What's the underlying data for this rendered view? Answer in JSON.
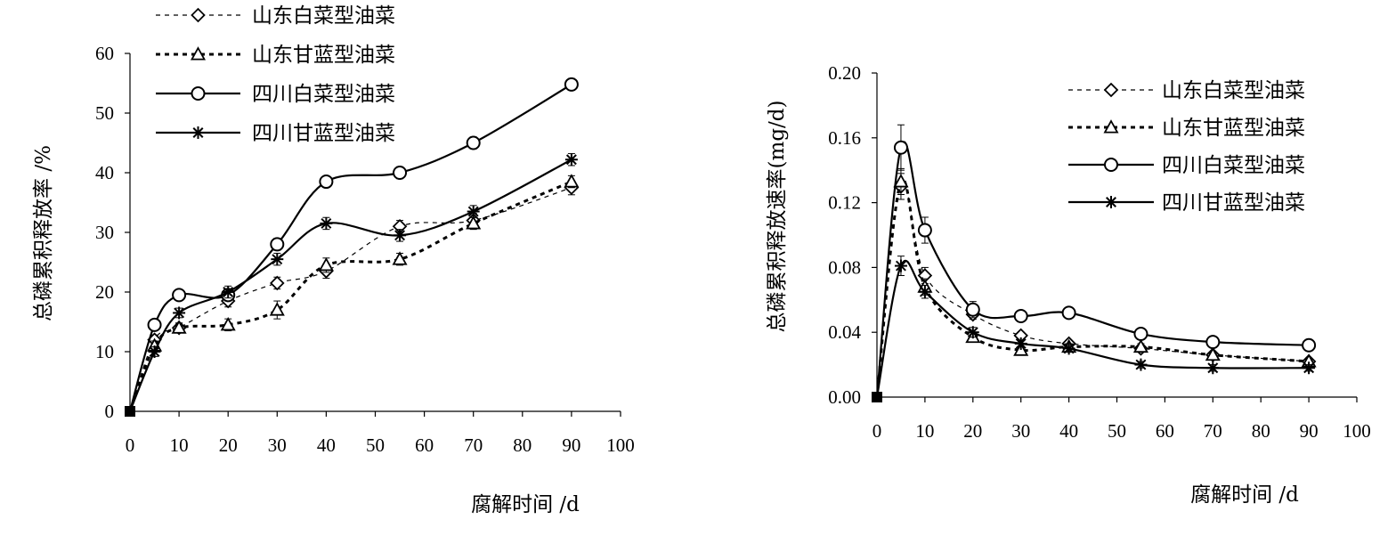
{
  "chart_data": [
    {
      "type": "line",
      "ylabel": "总磷累积释放率 /%",
      "xlabel": "腐解时间 /d",
      "xlim": [
        0,
        100
      ],
      "ylim": [
        0,
        60
      ],
      "xticks": [
        "0",
        "10",
        "20",
        "30",
        "40",
        "50",
        "60",
        "70",
        "80",
        "90",
        "100"
      ],
      "yticks": [
        "0",
        "10",
        "20",
        "30",
        "40",
        "50",
        "60"
      ],
      "legend_position": "top-left-outside",
      "series": [
        {
          "name": "山东白菜型油菜",
          "line": "dotted-thin",
          "marker": "diamond",
          "x": [
            0,
            5,
            10,
            20,
            30,
            40,
            55,
            70,
            90
          ],
          "y": [
            0,
            12,
            14,
            18.5,
            21.5,
            23.5,
            31,
            32,
            37.5
          ],
          "err": [
            0,
            0.8,
            0.8,
            1,
            1,
            1.2,
            1,
            1.2,
            1.2
          ]
        },
        {
          "name": "山东甘蓝型油菜",
          "line": "dotted-bold",
          "marker": "triangle",
          "x": [
            0,
            5,
            10,
            20,
            30,
            40,
            55,
            70,
            90
          ],
          "y": [
            0,
            11,
            14,
            14.5,
            17,
            24.5,
            25.5,
            31.5,
            38.5
          ],
          "err": [
            0,
            0.8,
            0.8,
            1,
            1.5,
            1.2,
            1,
            1,
            1
          ]
        },
        {
          "name": "四川白菜型油菜",
          "line": "solid",
          "marker": "circle",
          "x": [
            0,
            5,
            10,
            20,
            30,
            40,
            55,
            70,
            90
          ],
          "y": [
            0,
            14.5,
            19.5,
            19.5,
            28,
            38.5,
            40,
            45,
            54.8
          ],
          "err": [
            0,
            0.8,
            0.8,
            1,
            1,
            0.5,
            1,
            1,
            1
          ]
        },
        {
          "name": "四川甘蓝型油菜",
          "line": "solid",
          "marker": "asterisk",
          "x": [
            0,
            5,
            10,
            20,
            30,
            40,
            55,
            70,
            90
          ],
          "y": [
            0,
            10,
            16.5,
            20,
            25.5,
            31.5,
            29.5,
            33.5,
            42.2
          ],
          "err": [
            0,
            0.8,
            0.8,
            1,
            1,
            1,
            1,
            1,
            1
          ]
        }
      ]
    },
    {
      "type": "line",
      "ylabel": "总磷累积释放速率(mg/d)",
      "xlabel": "腐解时间 /d",
      "xlim": [
        0,
        100
      ],
      "ylim": [
        0,
        0.2
      ],
      "xticks": [
        "0",
        "10",
        "20",
        "30",
        "40",
        "50",
        "60",
        "70",
        "80",
        "90",
        "100"
      ],
      "yticks": [
        "0.00",
        "0.04",
        "0.08",
        "0.12",
        "0.16",
        "0.20"
      ],
      "legend_position": "top-right",
      "series": [
        {
          "name": "山东白菜型油菜",
          "line": "dotted-thin",
          "marker": "diamond",
          "x": [
            0,
            5,
            10,
            20,
            30,
            40,
            55,
            70,
            90
          ],
          "y": [
            0,
            0.13,
            0.075,
            0.051,
            0.038,
            0.033,
            0.03,
            0.026,
            0.022
          ],
          "err": [
            0,
            0.008,
            0.005,
            0.003,
            0.002,
            0.002,
            0.002,
            0.002,
            0.002
          ]
        },
        {
          "name": "山东甘蓝型油菜",
          "line": "dotted-bold",
          "marker": "triangle",
          "x": [
            0,
            5,
            10,
            20,
            30,
            40,
            55,
            70,
            90
          ],
          "y": [
            0,
            0.133,
            0.068,
            0.037,
            0.029,
            0.031,
            0.031,
            0.026,
            0.022
          ],
          "err": [
            0,
            0.008,
            0.005,
            0.003,
            0.002,
            0.002,
            0.002,
            0.002,
            0.002
          ]
        },
        {
          "name": "四川白菜型油菜",
          "line": "solid",
          "marker": "circle",
          "x": [
            0,
            5,
            10,
            20,
            30,
            40,
            55,
            70,
            90
          ],
          "y": [
            0,
            0.154,
            0.103,
            0.054,
            0.05,
            0.052,
            0.039,
            0.034,
            0.032
          ],
          "err": [
            0,
            0.014,
            0.008,
            0.005,
            0.002,
            0.003,
            0.002,
            0.002,
            0.002
          ]
        },
        {
          "name": "四川甘蓝型油菜",
          "line": "solid",
          "marker": "asterisk",
          "x": [
            0,
            5,
            10,
            20,
            30,
            40,
            55,
            70,
            90
          ],
          "y": [
            0,
            0.081,
            0.065,
            0.04,
            0.033,
            0.03,
            0.02,
            0.018,
            0.018
          ],
          "err": [
            0,
            0.006,
            0.004,
            0.003,
            0.002,
            0.002,
            0.002,
            0.002,
            0.002
          ]
        }
      ]
    }
  ]
}
